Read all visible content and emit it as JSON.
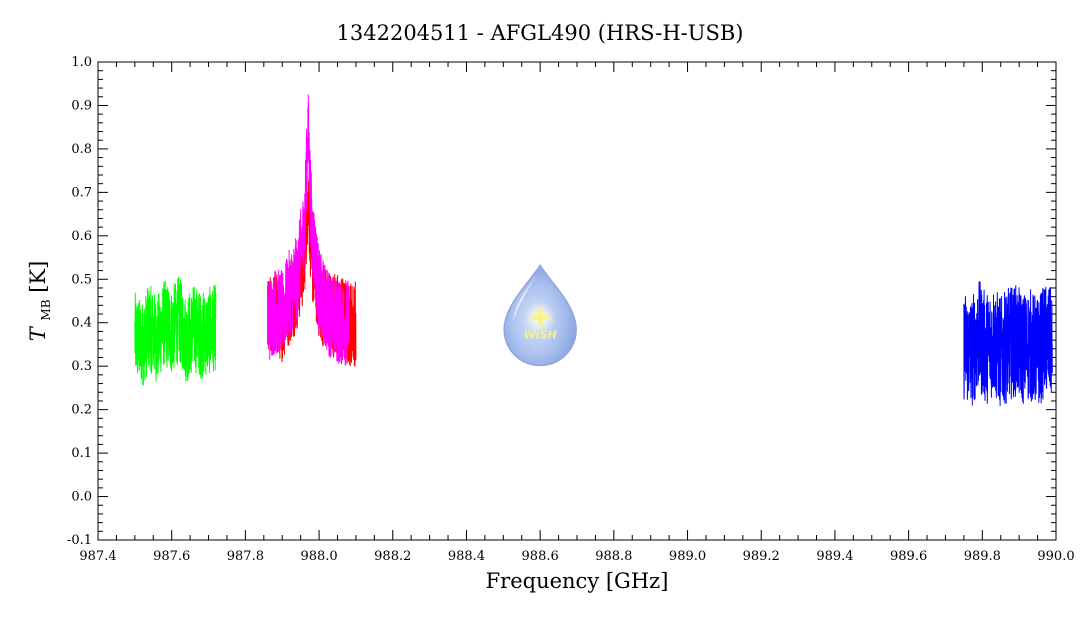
{
  "chart_data": {
    "type": "line",
    "title": "1342204511 - AFGL490 (HRS-H-USB)",
    "xlabel": "Frequency [GHz]",
    "ylabel_main": "T",
    "ylabel_sub": "MB",
    "ylabel_unit": "[K]",
    "xlim": [
      987.4,
      990.0
    ],
    "ylim": [
      -0.1,
      1.0
    ],
    "x_ticks": [
      "987.4",
      "987.6",
      "987.8",
      "988.0",
      "988.2",
      "988.4",
      "988.6",
      "988.8",
      "989.0",
      "989.2",
      "989.4",
      "989.6",
      "989.8",
      "990.0"
    ],
    "y_ticks": [
      "-0.1",
      "0.0",
      "0.1",
      "0.2",
      "0.3",
      "0.4",
      "0.5",
      "0.6",
      "0.7",
      "0.8",
      "0.9",
      "1.0"
    ],
    "grid": false,
    "series": [
      {
        "color": "#00ff00",
        "x": [
          987.5,
          987.52,
          987.54,
          987.56,
          987.58,
          987.6,
          987.62,
          987.64,
          987.66,
          987.68,
          987.7,
          987.72
        ],
        "y": [
          0.37,
          0.35,
          0.39,
          0.36,
          0.4,
          0.38,
          0.41,
          0.36,
          0.39,
          0.37,
          0.38,
          0.39
        ]
      },
      {
        "color": "#ff0000",
        "x": [
          987.86,
          987.88,
          987.9,
          987.92,
          987.94,
          987.96,
          987.97,
          987.98,
          988.0,
          988.02,
          988.04,
          988.06,
          988.08,
          988.1
        ],
        "y": [
          0.4,
          0.42,
          0.41,
          0.45,
          0.48,
          0.55,
          0.7,
          0.55,
          0.46,
          0.43,
          0.42,
          0.41,
          0.4,
          0.4
        ]
      },
      {
        "color": "#ff00ff",
        "x": [
          987.86,
          987.88,
          987.9,
          987.92,
          987.94,
          987.96,
          987.97,
          987.98,
          988.0,
          988.02,
          988.04,
          988.06,
          988.08
        ],
        "y": [
          0.4,
          0.43,
          0.42,
          0.47,
          0.5,
          0.62,
          0.85,
          0.62,
          0.47,
          0.43,
          0.41,
          0.4,
          0.4
        ]
      },
      {
        "color": "#0000ff",
        "x": [
          989.75,
          989.77,
          989.79,
          989.81,
          989.83,
          989.85,
          989.87,
          989.89,
          989.91,
          989.93,
          989.95,
          989.97,
          989.99
        ],
        "y": [
          0.35,
          0.33,
          0.37,
          0.34,
          0.36,
          0.33,
          0.35,
          0.36,
          0.34,
          0.35,
          0.33,
          0.36,
          0.35
        ]
      }
    ],
    "logo": {
      "label": "WISH",
      "x": 988.6,
      "y": 0.38
    }
  }
}
